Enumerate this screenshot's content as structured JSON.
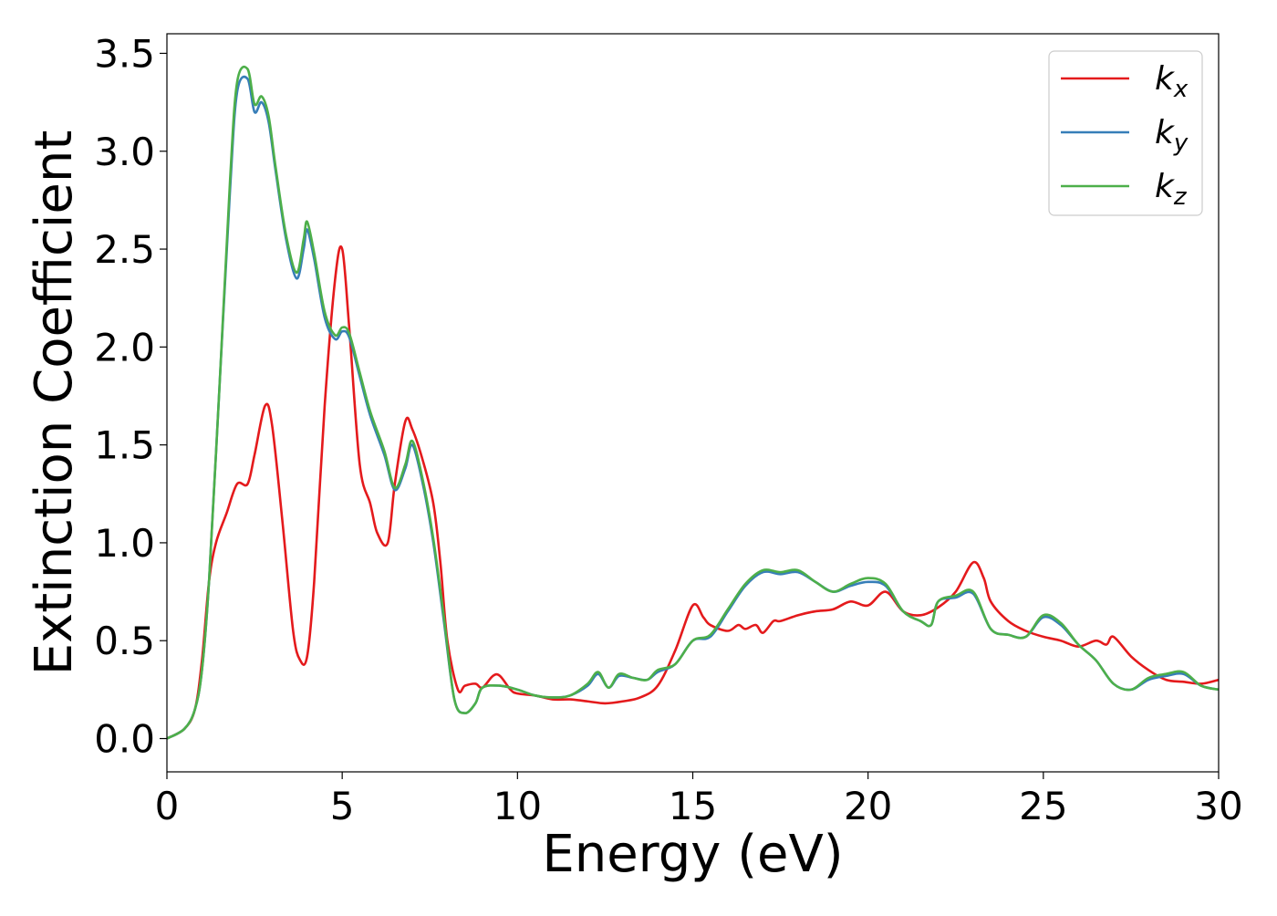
{
  "chart_data": {
    "type": "line",
    "xlabel": "Energy (eV)",
    "ylabel": "Extinction Coefficient",
    "xlim": [
      0,
      30
    ],
    "ylim": [
      -0.17,
      3.6
    ],
    "xticks": [
      0,
      5,
      10,
      15,
      20,
      25,
      30
    ],
    "yticks": [
      0.0,
      0.5,
      1.0,
      1.5,
      2.0,
      2.5,
      3.0,
      3.5
    ],
    "xtick_labels": [
      "0",
      "5",
      "10",
      "15",
      "20",
      "25",
      "30"
    ],
    "ytick_labels": [
      "0.0",
      "0.5",
      "1.0",
      "1.5",
      "2.0",
      "2.5",
      "3.0",
      "3.5"
    ],
    "grid": false,
    "legend_position": "top-right",
    "series": [
      {
        "name": "k",
        "subscript": "x",
        "color": "#e41a1c",
        "x": [
          0,
          0.5,
          0.8,
          1.0,
          1.2,
          1.4,
          1.7,
          2.0,
          2.3,
          2.5,
          2.8,
          3.0,
          3.3,
          3.6,
          3.8,
          4.0,
          4.2,
          4.5,
          4.8,
          5.0,
          5.2,
          5.5,
          5.8,
          6.0,
          6.3,
          6.5,
          6.8,
          7.0,
          7.3,
          7.6,
          7.8,
          8.0,
          8.3,
          8.5,
          8.8,
          9.0,
          9.3,
          9.5,
          9.8,
          10,
          10.5,
          11,
          11.5,
          12,
          12.5,
          13,
          13.5,
          14,
          14.5,
          15,
          15.3,
          15.5,
          16,
          16.3,
          16.5,
          16.8,
          17,
          17.3,
          17.5,
          18,
          18.5,
          19,
          19.5,
          20,
          20.5,
          21,
          21.5,
          22,
          22.5,
          23,
          23.3,
          23.5,
          24,
          24.5,
          25,
          25.5,
          26,
          26.5,
          26.8,
          27,
          27.5,
          28,
          28.5,
          29,
          29.5,
          30
        ],
        "y": [
          0,
          0.05,
          0.15,
          0.4,
          0.8,
          1.0,
          1.15,
          1.3,
          1.3,
          1.45,
          1.7,
          1.6,
          1.1,
          0.55,
          0.4,
          0.42,
          0.8,
          1.7,
          2.35,
          2.5,
          2.1,
          1.4,
          1.2,
          1.05,
          1.0,
          1.3,
          1.62,
          1.58,
          1.42,
          1.2,
          0.9,
          0.5,
          0.25,
          0.27,
          0.28,
          0.26,
          0.32,
          0.32,
          0.25,
          0.23,
          0.22,
          0.2,
          0.2,
          0.19,
          0.18,
          0.19,
          0.21,
          0.27,
          0.45,
          0.68,
          0.62,
          0.58,
          0.55,
          0.58,
          0.56,
          0.58,
          0.54,
          0.6,
          0.6,
          0.63,
          0.65,
          0.66,
          0.7,
          0.68,
          0.75,
          0.65,
          0.63,
          0.67,
          0.75,
          0.9,
          0.82,
          0.7,
          0.6,
          0.55,
          0.52,
          0.5,
          0.47,
          0.5,
          0.48,
          0.52,
          0.42,
          0.35,
          0.3,
          0.29,
          0.28,
          0.3
        ]
      },
      {
        "name": "k",
        "subscript": "y",
        "color": "#377eb8",
        "x": [
          0,
          0.5,
          0.8,
          1.0,
          1.2,
          1.5,
          1.8,
          2.0,
          2.3,
          2.5,
          2.7,
          2.9,
          3.1,
          3.4,
          3.7,
          3.9,
          4.0,
          4.2,
          4.5,
          4.8,
          5.0,
          5.2,
          5.5,
          5.8,
          6.2,
          6.5,
          6.8,
          7.0,
          7.3,
          7.6,
          7.9,
          8.2,
          8.5,
          8.8,
          9.0,
          9.5,
          10,
          10.5,
          11,
          11.5,
          12,
          12.3,
          12.6,
          12.9,
          13.3,
          13.7,
          14,
          14.5,
          15,
          15.5,
          16,
          16.5,
          17,
          17.5,
          18,
          18.5,
          19,
          19.5,
          20,
          20.5,
          21,
          21.5,
          21.8,
          22,
          22.5,
          23,
          23.5,
          24,
          24.5,
          25,
          25.5,
          26,
          26.5,
          27,
          27.5,
          28,
          28.5,
          29,
          29.5,
          30
        ],
        "y": [
          0,
          0.05,
          0.15,
          0.35,
          0.8,
          1.8,
          2.8,
          3.3,
          3.37,
          3.2,
          3.25,
          3.15,
          2.9,
          2.55,
          2.35,
          2.5,
          2.6,
          2.45,
          2.15,
          2.04,
          2.08,
          2.05,
          1.85,
          1.65,
          1.45,
          1.27,
          1.38,
          1.5,
          1.3,
          1.0,
          0.6,
          0.2,
          0.13,
          0.18,
          0.26,
          0.27,
          0.25,
          0.22,
          0.21,
          0.22,
          0.27,
          0.33,
          0.26,
          0.32,
          0.31,
          0.3,
          0.34,
          0.38,
          0.5,
          0.52,
          0.65,
          0.78,
          0.85,
          0.84,
          0.85,
          0.8,
          0.75,
          0.78,
          0.8,
          0.78,
          0.65,
          0.6,
          0.58,
          0.7,
          0.72,
          0.74,
          0.56,
          0.53,
          0.52,
          0.62,
          0.58,
          0.48,
          0.4,
          0.28,
          0.25,
          0.3,
          0.32,
          0.33,
          0.27,
          0.25
        ]
      },
      {
        "name": "k",
        "subscript": "z",
        "color": "#4daf4a",
        "x": [
          0,
          0.5,
          0.8,
          1.0,
          1.2,
          1.5,
          1.8,
          2.0,
          2.3,
          2.5,
          2.7,
          2.9,
          3.1,
          3.4,
          3.7,
          3.9,
          4.0,
          4.2,
          4.5,
          4.8,
          5.0,
          5.2,
          5.5,
          5.8,
          6.2,
          6.5,
          6.8,
          7.0,
          7.3,
          7.6,
          7.9,
          8.2,
          8.5,
          8.8,
          9.0,
          9.5,
          10,
          10.5,
          11,
          11.5,
          12,
          12.3,
          12.6,
          12.9,
          13.3,
          13.7,
          14,
          14.5,
          15,
          15.5,
          16,
          16.5,
          17,
          17.5,
          18,
          18.5,
          19,
          19.5,
          20,
          20.5,
          21,
          21.5,
          21.8,
          22,
          22.5,
          23,
          23.5,
          24,
          24.5,
          25,
          25.5,
          26,
          26.5,
          27,
          27.5,
          28,
          28.5,
          29,
          29.5,
          30
        ],
        "y": [
          0,
          0.05,
          0.15,
          0.35,
          0.8,
          1.8,
          2.85,
          3.35,
          3.42,
          3.24,
          3.28,
          3.18,
          2.92,
          2.57,
          2.38,
          2.55,
          2.64,
          2.48,
          2.18,
          2.06,
          2.1,
          2.07,
          1.87,
          1.67,
          1.47,
          1.28,
          1.4,
          1.52,
          1.32,
          1.02,
          0.62,
          0.2,
          0.13,
          0.18,
          0.26,
          0.27,
          0.25,
          0.22,
          0.21,
          0.22,
          0.28,
          0.34,
          0.26,
          0.33,
          0.31,
          0.3,
          0.35,
          0.38,
          0.5,
          0.53,
          0.66,
          0.79,
          0.86,
          0.85,
          0.86,
          0.8,
          0.75,
          0.79,
          0.82,
          0.79,
          0.65,
          0.6,
          0.58,
          0.7,
          0.73,
          0.75,
          0.56,
          0.53,
          0.52,
          0.63,
          0.59,
          0.48,
          0.4,
          0.28,
          0.25,
          0.31,
          0.33,
          0.34,
          0.27,
          0.25
        ]
      }
    ]
  }
}
